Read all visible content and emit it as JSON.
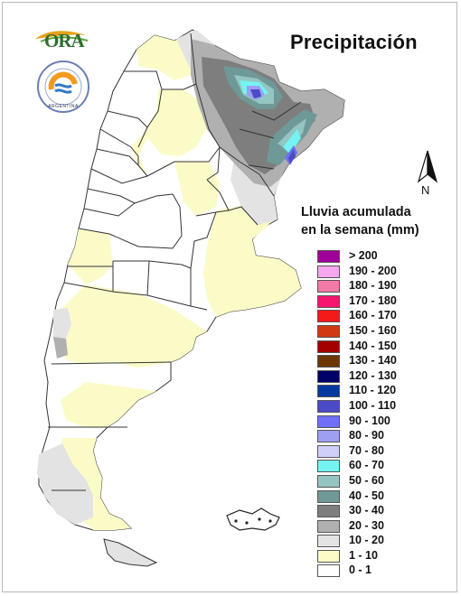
{
  "title": "Precipitación",
  "logo": {
    "text": "ORA"
  },
  "seal": {
    "text": "ARGENTINA"
  },
  "compass": {
    "label": "N"
  },
  "legend": {
    "title_line1": "Lluvia acumulada",
    "title_line2": "en la semana (mm)",
    "items": [
      {
        "label": "> 200",
        "color": "#a0009a"
      },
      {
        "label": "190 - 200",
        "color": "#f7a6f0"
      },
      {
        "label": "180 - 190",
        "color": "#f27aa6"
      },
      {
        "label": "170 - 180",
        "color": "#f5156e"
      },
      {
        "label": "160 - 170",
        "color": "#f51a1a"
      },
      {
        "label": "150 - 160",
        "color": "#d13a10"
      },
      {
        "label": "140 - 150",
        "color": "#a30000"
      },
      {
        "label": "130 - 140",
        "color": "#6e3700"
      },
      {
        "label": "120 - 130",
        "color": "#00006b"
      },
      {
        "label": "110 - 120",
        "color": "#003a9e"
      },
      {
        "label": "100 - 110",
        "color": "#4b4bc8"
      },
      {
        "label": "90 - 100",
        "color": "#6f70f5"
      },
      {
        "label": "80 - 90",
        "color": "#9e9ef2"
      },
      {
        "label": "70 - 80",
        "color": "#cfcff9"
      },
      {
        "label": "60 - 70",
        "color": "#74f3f2"
      },
      {
        "label": "50 - 60",
        "color": "#94c5c2"
      },
      {
        "label": "40 - 50",
        "color": "#6f9996"
      },
      {
        "label": "30 - 40",
        "color": "#7e7e7e"
      },
      {
        "label": "20 - 30",
        "color": "#b0b0b0"
      },
      {
        "label": "10 - 20",
        "color": "#e3e3e3"
      },
      {
        "label": "1 - 10",
        "color": "#fbfbc8"
      },
      {
        "label": "0 - 1",
        "color": "#ffffff"
      }
    ]
  }
}
